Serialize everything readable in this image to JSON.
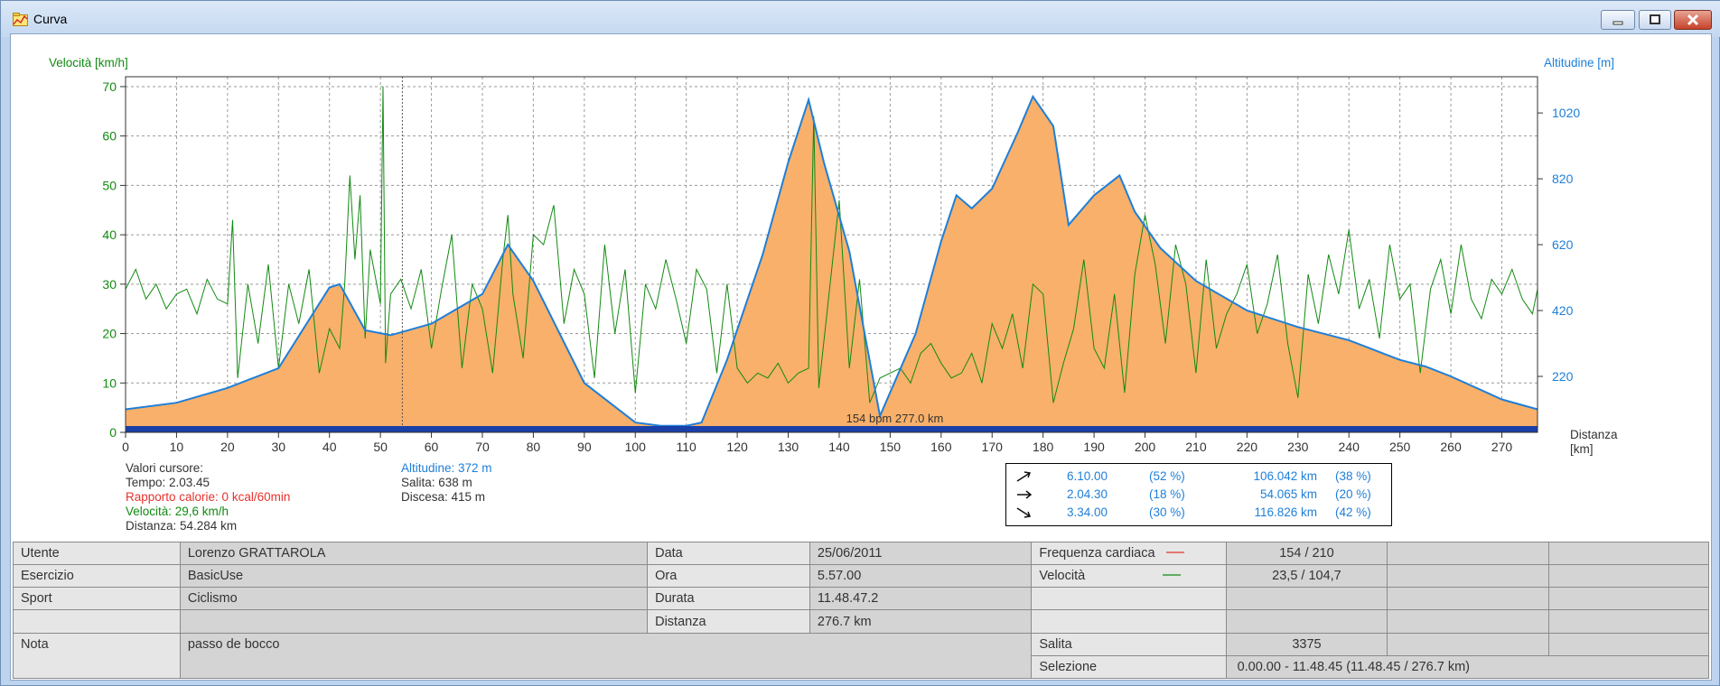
{
  "window": {
    "title": "Curva"
  },
  "chart_data": {
    "type": "area",
    "xlabel": "Distanza [km]",
    "xlim": [
      0,
      277
    ],
    "x_ticks": [
      "0",
      "10",
      "20",
      "30",
      "40",
      "50",
      "60",
      "70",
      "80",
      "90",
      "100",
      "110",
      "120",
      "130",
      "140",
      "150",
      "160",
      "170",
      "180",
      "190",
      "200",
      "210",
      "220",
      "230",
      "240",
      "250",
      "260",
      "270"
    ],
    "y_left": {
      "label": "Velocità [km/h]",
      "lim": [
        0,
        72
      ],
      "ticks": [
        "0",
        "10",
        "20",
        "30",
        "40",
        "50",
        "60",
        "70"
      ]
    },
    "y_right": {
      "label": "Altitudine [m]",
      "lim": [
        50,
        1130
      ],
      "ticks": [
        "220",
        "420",
        "620",
        "820",
        "1020"
      ]
    },
    "grid": true,
    "series": [
      {
        "name": "Altitudine",
        "axis": "right",
        "color": "#1e7fd8",
        "fill": "#f8b06a",
        "x": [
          0,
          10,
          20,
          30,
          40,
          42,
          47,
          52,
          60,
          70,
          75,
          80,
          90,
          100,
          105,
          110,
          113,
          118,
          125,
          130,
          134,
          137,
          142,
          148,
          155,
          160,
          163,
          166,
          170,
          175,
          178,
          182,
          185,
          190,
          195,
          198,
          203,
          210,
          220,
          230,
          240,
          250,
          255,
          260,
          270,
          277
        ],
        "y": [
          120,
          140,
          185,
          245,
          490,
          500,
          360,
          345,
          380,
          470,
          620,
          510,
          200,
          80,
          70,
          70,
          80,
          270,
          590,
          870,
          1060,
          870,
          600,
          100,
          350,
          630,
          770,
          730,
          790,
          960,
          1070,
          980,
          680,
          770,
          830,
          720,
          610,
          510,
          420,
          370,
          330,
          270,
          250,
          220,
          150,
          120
        ]
      },
      {
        "name": "Velocità",
        "axis": "left",
        "color": "#128a12",
        "line_width": 1,
        "x": [
          0,
          2,
          4,
          6,
          8,
          10,
          12,
          14,
          16,
          18,
          20,
          21,
          22,
          24,
          26,
          28,
          30,
          32,
          34,
          36,
          38,
          40,
          42,
          43,
          44,
          45,
          46,
          47,
          48,
          50,
          50.5,
          51,
          52,
          54,
          56,
          58,
          60,
          62,
          64,
          66,
          68,
          70,
          72,
          74,
          75,
          76,
          78,
          80,
          82,
          84,
          86,
          88,
          90,
          92,
          94,
          96,
          98,
          100,
          102,
          104,
          106,
          108,
          110,
          112,
          114,
          116,
          118,
          120,
          122,
          124,
          126,
          128,
          130,
          132,
          134,
          135,
          136,
          138,
          140,
          142,
          144,
          146,
          148,
          150,
          152,
          154,
          156,
          158,
          160,
          162,
          164,
          166,
          168,
          170,
          172,
          174,
          176,
          178,
          180,
          182,
          184,
          186,
          188,
          190,
          192,
          194,
          196,
          198,
          200,
          202,
          204,
          206,
          208,
          210,
          212,
          214,
          216,
          218,
          220,
          222,
          224,
          226,
          228,
          230,
          232,
          234,
          236,
          238,
          240,
          242,
          244,
          246,
          248,
          250,
          252,
          254,
          256,
          258,
          260,
          262,
          264,
          266,
          268,
          270,
          272,
          274,
          276,
          277
        ],
        "y": [
          29,
          33,
          27,
          30,
          25,
          28,
          29,
          24,
          31,
          27,
          26,
          43,
          11,
          30,
          18,
          34,
          13,
          30,
          22,
          33,
          12,
          21,
          17,
          30,
          52,
          35,
          48,
          19,
          37,
          26,
          70,
          14,
          28,
          31,
          25,
          33,
          17,
          29,
          40,
          13,
          30,
          25,
          12,
          35,
          44,
          28,
          15,
          40,
          38,
          46,
          22,
          33,
          28,
          11,
          38,
          20,
          33,
          8,
          30,
          25,
          35,
          27,
          18,
          33,
          29,
          12,
          30,
          13,
          10,
          12,
          11,
          14,
          10,
          12,
          13,
          64,
          9,
          28,
          47,
          13,
          31,
          6,
          11,
          12,
          13,
          10,
          16,
          18,
          14,
          11,
          12,
          16,
          10,
          22,
          17,
          24,
          13,
          30,
          28,
          6,
          14,
          21,
          35,
          17,
          13,
          28,
          8,
          32,
          44,
          34,
          18,
          38,
          30,
          12,
          35,
          17,
          24,
          28,
          34,
          20,
          26,
          36,
          18,
          7,
          32,
          22,
          36,
          28,
          41,
          25,
          31,
          19,
          38,
          27,
          30,
          12,
          29,
          35,
          24,
          38,
          27,
          23,
          31,
          28,
          33,
          27,
          24,
          29
        ]
      }
    ]
  },
  "cursor": {
    "header": "Valori cursore:",
    "tempo": "Tempo: 2.03.45",
    "calorie": "Rapporto calorie: 0 kcal/60min",
    "velocita": "Velocità: 29,6 km/h",
    "distanza": "Distanza: 54.284 km",
    "altitudine": "Altitudine: 372 m",
    "salita": "Salita: 638 m",
    "discesa": "Discesa: 415 m",
    "marker_km": 54.3
  },
  "bpm_label": "154 bpm 277.0 km",
  "colors": {
    "speed": "#128a12",
    "altitude": "#1e7fd8",
    "fill": "#f8b06a",
    "calorie": "#e8322d",
    "hr_line": "#e8322d"
  },
  "stats": [
    {
      "icon": "uphill-arrow-icon",
      "time": "6.10.00",
      "pct": "(52 %)",
      "dist": "106.042 km",
      "dpct": "(38 %)"
    },
    {
      "icon": "flat-arrow-icon",
      "time": "2.04.30",
      "pct": "(18 %)",
      "dist": "54.065 km",
      "dpct": "(20 %)"
    },
    {
      "icon": "downhill-arrow-icon",
      "time": "3.34.00",
      "pct": "(30 %)",
      "dist": "116.826 km",
      "dpct": "(42 %)"
    }
  ],
  "info": {
    "utente_label": "Utente",
    "utente": "Lorenzo  GRATTAROLA",
    "esercizio_label": "Esercizio",
    "esercizio": "BasicUse",
    "sport_label": "Sport",
    "sport": "Ciclismo",
    "nota_label": "Nota",
    "nota": "passo de bocco",
    "data_label": "Data",
    "data": "25/06/2011",
    "ora_label": "Ora",
    "ora": "5.57.00",
    "durata_label": "Durata",
    "durata": "11.48.47.2",
    "distanza_label": "Distanza",
    "distanza": "276.7 km",
    "fc_label": "Frequenza cardiaca",
    "fc": "154 / 210",
    "vel_label": "Velocità",
    "vel": "23,5 / 104,7",
    "salita_label": "Salita",
    "salita": "3375",
    "selezione_label": "Selezione",
    "selezione": "0.00.00 - 11.48.45 (11.48.45 / 276.7 km)"
  }
}
